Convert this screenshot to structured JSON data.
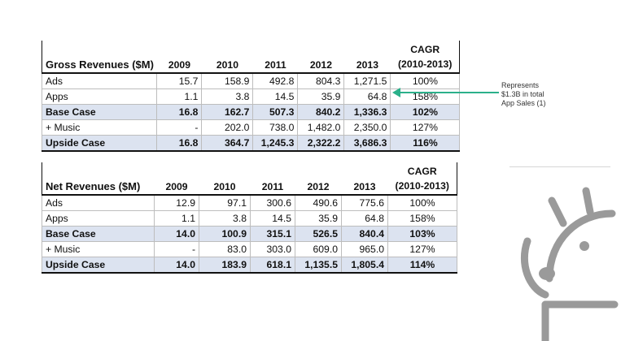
{
  "years": [
    "2009",
    "2010",
    "2011",
    "2012",
    "2013"
  ],
  "cagr_header": [
    "CAGR",
    "(2010-2013)"
  ],
  "gross": {
    "title": "Gross Revenues ($M)",
    "rows": [
      {
        "label": "Ads",
        "values": [
          "15.7",
          "158.9",
          "492.8",
          "804.3",
          "1,271.5"
        ],
        "cagr": "100%"
      },
      {
        "label": "Apps",
        "values": [
          "1.1",
          "3.8",
          "14.5",
          "35.9",
          "64.8"
        ],
        "cagr": "158%"
      },
      {
        "label": "Base Case",
        "values": [
          "16.8",
          "162.7",
          "507.3",
          "840.2",
          "1,336.3"
        ],
        "cagr": "102%"
      },
      {
        "label": "+ Music",
        "values": [
          "-",
          "202.0",
          "738.0",
          "1,482.0",
          "2,350.0"
        ],
        "cagr": "127%"
      },
      {
        "label": "Upside Case",
        "values": [
          "16.8",
          "364.7",
          "1,245.3",
          "2,322.2",
          "3,686.3"
        ],
        "cagr": "116%"
      }
    ]
  },
  "net": {
    "title": "Net Revenues ($M)",
    "rows": [
      {
        "label": "Ads",
        "values": [
          "12.9",
          "97.1",
          "300.6",
          "490.6",
          "775.6"
        ],
        "cagr": "100%"
      },
      {
        "label": "Apps",
        "values": [
          "1.1",
          "3.8",
          "14.5",
          "35.9",
          "64.8"
        ],
        "cagr": "158%"
      },
      {
        "label": "Base Case",
        "values": [
          "14.0",
          "100.9",
          "315.1",
          "526.5",
          "840.4"
        ],
        "cagr": "103%"
      },
      {
        "label": "+ Music",
        "values": [
          "-",
          "83.0",
          "303.0",
          "609.0",
          "965.0"
        ],
        "cagr": "127%"
      },
      {
        "label": "Upside Case",
        "values": [
          "14.0",
          "183.9",
          "618.1",
          "1,135.5",
          "1,805.4"
        ],
        "cagr": "114%"
      }
    ]
  },
  "annotation": {
    "lines": [
      "Represents",
      "$1.3B in total",
      "App Sales (1)"
    ]
  },
  "colors": {
    "highlight_row": "#dce3f0",
    "arrow": "#2bb08a",
    "android_outline": "#9a9a9a"
  },
  "icons": {
    "arrow": "arrow-left-icon",
    "android": "android-robot-icon"
  }
}
